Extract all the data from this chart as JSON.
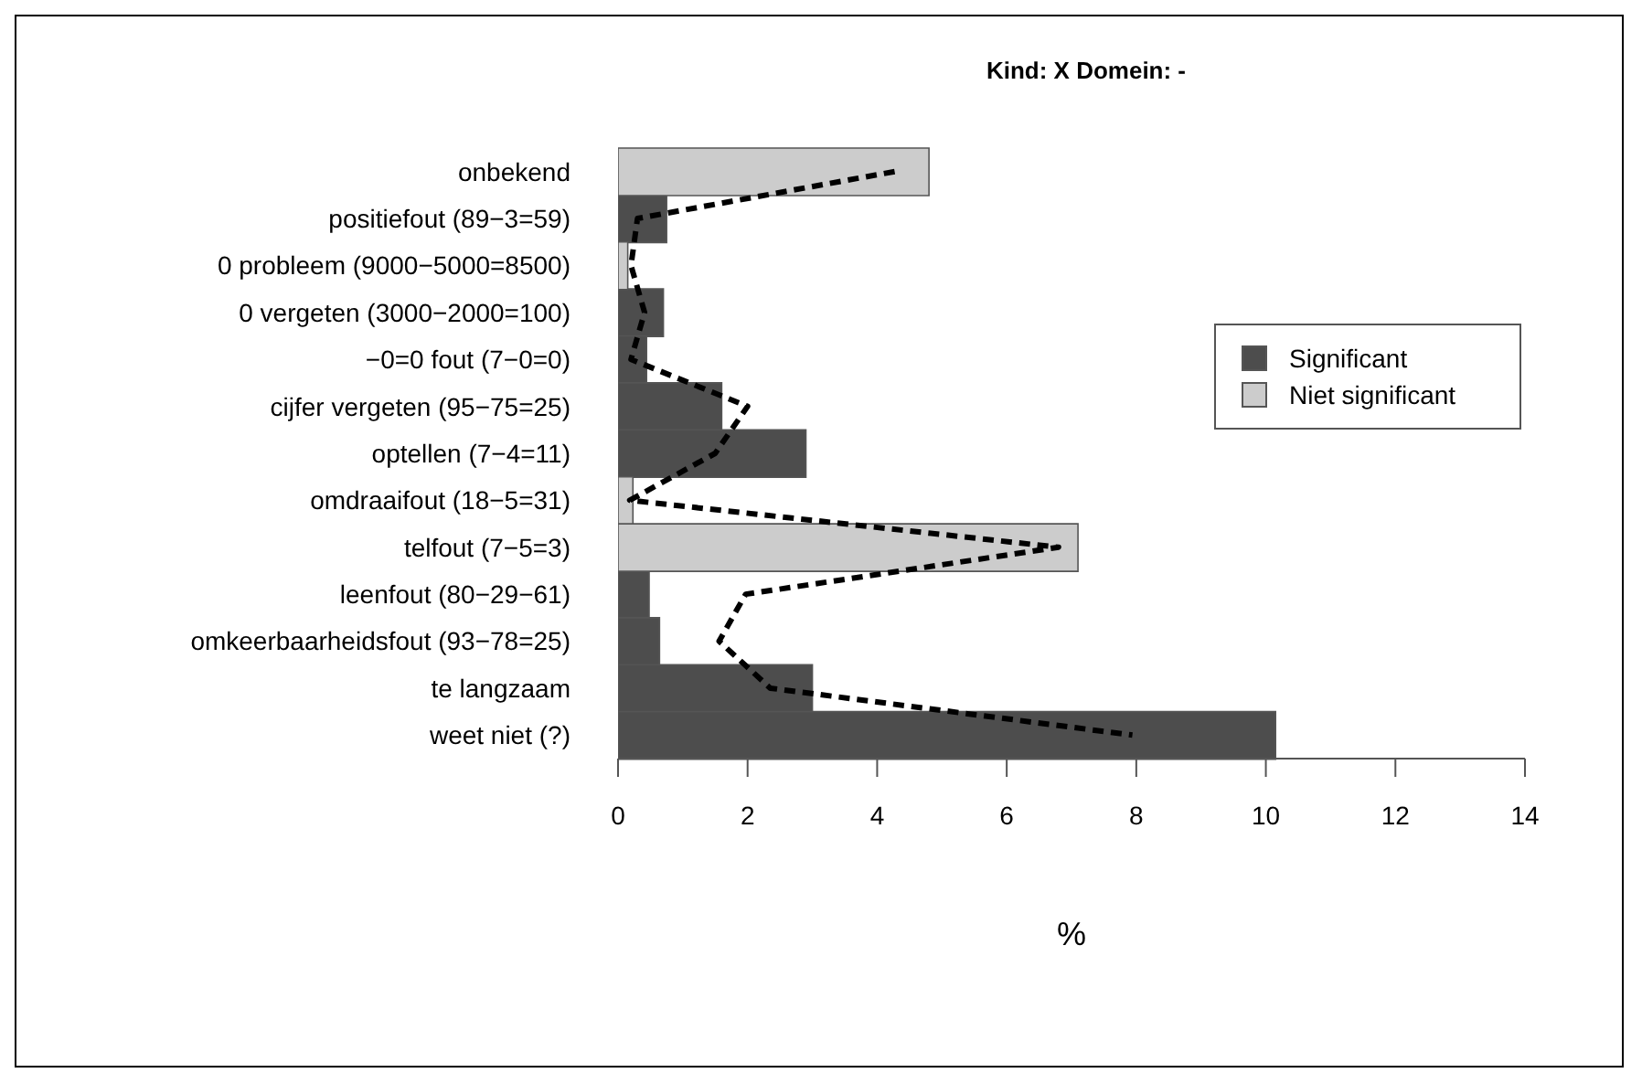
{
  "chart_data": {
    "type": "bar",
    "orientation": "horizontal",
    "stacked": true,
    "title": "Kind: X Domein: -",
    "xlabel": "%",
    "categories": [
      "onbekend",
      "positiefout (89−3=59)",
      "0 probleem (9000−5000=8500)",
      "0 vergeten (3000−2000=100)",
      "−0=0 fout (7−0=0)",
      "cijfer vergeten (95−75=25)",
      "optellen (7−4=11)",
      "omdraaifout (18−5=31)",
      "telfout (7−5=3)",
      "leenfout (80−29−61)",
      "omkeerbaarheidsfout (93−78=25)",
      "te langzaam",
      "weet niet (?)"
    ],
    "series": [
      {
        "name": "Significant",
        "color": "#4d4d4d",
        "values": [
          null,
          0.75,
          null,
          0.7,
          0.44,
          1.6,
          2.9,
          null,
          null,
          0.48,
          0.64,
          3.0,
          10.15
        ]
      },
      {
        "name": "Niet significant",
        "color": "#cccccc",
        "values": [
          4.8,
          null,
          0.15,
          null,
          null,
          null,
          null,
          0.23,
          7.1,
          null,
          null,
          null,
          null
        ]
      },
      {
        "type": "line",
        "color": "#000000",
        "line_style": "dashed",
        "marker": "none",
        "values": [
          4.27,
          0.3,
          0.2,
          0.41,
          0.2,
          2.0,
          1.5,
          0.18,
          6.8,
          1.97,
          1.56,
          2.35,
          7.94
        ]
      }
    ],
    "xlim": [
      0,
      14
    ],
    "xticks": [
      0,
      2,
      4,
      6,
      8,
      10,
      12,
      14
    ],
    "legend": "right"
  }
}
